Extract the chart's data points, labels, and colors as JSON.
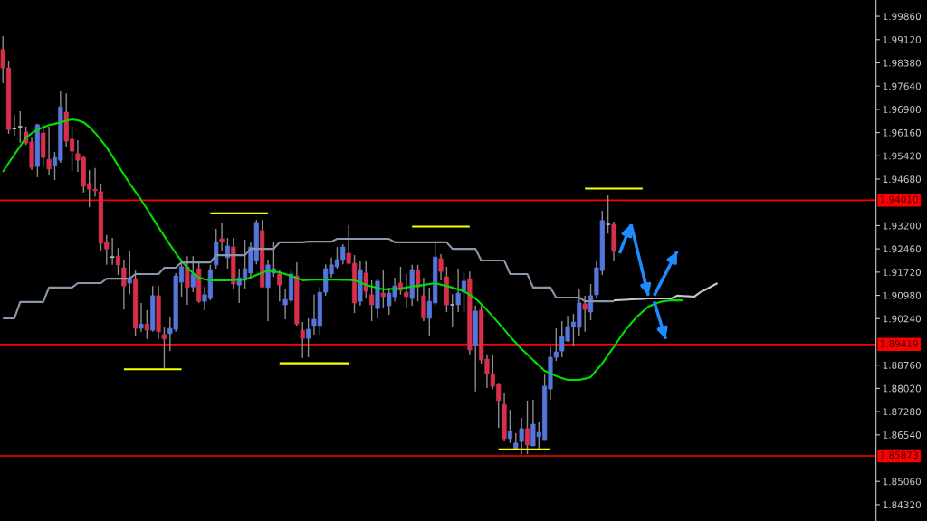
{
  "chart_data": {
    "type": "candlestick",
    "categories": [
      null,
      null,
      null,
      null,
      null,
      null,
      null,
      null,
      null,
      null,
      null,
      null,
      null,
      null,
      null,
      null,
      null,
      null,
      null,
      null,
      null,
      null,
      null,
      null,
      null,
      null,
      null,
      null,
      null,
      null,
      null,
      null,
      null,
      null,
      null,
      null,
      null,
      null,
      null,
      null,
      null,
      null,
      null,
      null,
      null,
      null,
      null,
      null,
      null,
      null,
      null,
      null,
      null,
      null,
      null,
      null,
      null,
      null,
      null,
      null,
      null,
      null,
      null,
      null,
      null,
      null,
      null,
      null,
      null,
      null,
      null,
      null,
      null,
      null,
      null,
      null,
      null,
      null,
      null,
      null,
      null,
      null,
      null,
      null,
      null,
      null,
      null,
      null,
      null,
      null,
      null,
      null,
      null,
      null,
      null,
      null,
      null,
      null,
      null,
      null,
      null,
      null,
      null,
      null,
      null,
      null,
      null,
      null,
      null,
      null,
      null,
      null,
      null,
      null,
      null,
      null,
      null,
      null,
      null,
      null,
      null,
      null,
      null,
      null,
      null,
      null,
      null,
      null,
      null,
      null,
      null,
      null,
      null,
      null,
      null,
      null,
      null,
      null,
      null,
      null,
      null,
      null,
      null,
      null,
      null,
      null,
      null,
      null,
      null,
      null,
      null,
      null
    ],
    "ohlc": [
      [
        1.988,
        1.9923,
        1.9773,
        1.9822
      ],
      [
        1.9822,
        1.9845,
        1.9612,
        1.9626
      ],
      [
        1.9629,
        1.9672,
        1.9606,
        1.9629
      ],
      [
        1.9635,
        1.9684,
        1.9583,
        1.9635
      ],
      [
        1.9618,
        1.9635,
        1.9577,
        1.9583
      ],
      [
        1.9586,
        1.96,
        1.9497,
        1.9505
      ],
      [
        1.9508,
        1.9644,
        1.9474,
        1.9641
      ],
      [
        1.9615,
        1.9644,
        1.9511,
        1.9537
      ],
      [
        1.9531,
        1.9635,
        1.9482,
        1.95
      ],
      [
        1.9511,
        1.9554,
        1.9465,
        1.9537
      ],
      [
        1.9528,
        1.9747,
        1.952,
        1.9698
      ],
      [
        1.9681,
        1.9741,
        1.9569,
        1.9589
      ],
      [
        1.9595,
        1.9635,
        1.9494,
        1.9557
      ],
      [
        1.9549,
        1.9592,
        1.9491,
        1.9528
      ],
      [
        1.9537,
        1.954,
        1.9425,
        1.9445
      ],
      [
        1.9454,
        1.9497,
        1.9379,
        1.9436
      ],
      [
        1.9436,
        1.9503,
        1.9413,
        1.9431
      ],
      [
        1.9428,
        1.9454,
        1.9241,
        1.9264
      ],
      [
        1.9269,
        1.929,
        1.9195,
        1.9246
      ],
      [
        1.922,
        1.9281,
        1.9195,
        1.922
      ],
      [
        1.9223,
        1.9249,
        1.9163,
        1.9195
      ],
      [
        1.9186,
        1.9212,
        1.9053,
        1.9128
      ],
      [
        1.9137,
        1.9238,
        1.9102,
        1.9148
      ],
      [
        1.9151,
        1.918,
        1.897,
        1.8993
      ],
      [
        1.8993,
        1.9074,
        1.8982,
        1.9007
      ],
      [
        1.9007,
        1.9051,
        1.8959,
        1.8987
      ],
      [
        1.8987,
        1.9128,
        1.8982,
        1.9097
      ],
      [
        1.9097,
        1.9128,
        1.8959,
        1.8982
      ],
      [
        1.8973,
        1.8996,
        1.8866,
        1.8959
      ],
      [
        1.8976,
        1.903,
        1.8921,
        1.8993
      ],
      [
        1.899,
        1.9169,
        1.8982,
        1.916
      ],
      [
        1.914,
        1.9212,
        1.9094,
        1.9189
      ],
      [
        1.9189,
        1.9223,
        1.9068,
        1.9123
      ],
      [
        1.9125,
        1.9223,
        1.9108,
        1.9166
      ],
      [
        1.9183,
        1.9203,
        1.9074,
        1.9079
      ],
      [
        1.9079,
        1.9125,
        1.9051,
        1.91
      ],
      [
        1.9088,
        1.9195,
        1.9082,
        1.918
      ],
      [
        1.9195,
        1.931,
        1.9183,
        1.9269
      ],
      [
        1.9278,
        1.9327,
        1.9238,
        1.9269
      ],
      [
        1.9218,
        1.9281,
        1.9183,
        1.9255
      ],
      [
        1.9252,
        1.9281,
        1.9117,
        1.9134
      ],
      [
        1.9131,
        1.9183,
        1.9074,
        1.9154
      ],
      [
        1.9148,
        1.9275,
        1.9117,
        1.9183
      ],
      [
        1.9169,
        1.9269,
        1.9154,
        1.9252
      ],
      [
        1.9209,
        1.9338,
        1.9197,
        1.933
      ],
      [
        1.9304,
        1.9338,
        1.9123,
        1.9125
      ],
      [
        1.9123,
        1.9212,
        1.9016,
        1.9195
      ],
      [
        1.9169,
        1.9267,
        1.9157,
        1.9183
      ],
      [
        1.9166,
        1.918,
        1.9079,
        1.9131
      ],
      [
        1.9068,
        1.9117,
        1.9022,
        1.9085
      ],
      [
        1.9082,
        1.9177,
        1.9074,
        1.9166
      ],
      [
        1.916,
        1.9203,
        1.9002,
        1.9007
      ],
      [
        1.8987,
        1.9013,
        1.8898,
        1.8961
      ],
      [
        1.8961,
        1.9025,
        1.8901,
        1.899
      ],
      [
        1.9002,
        1.91,
        1.8973,
        1.9022
      ],
      [
        1.9002,
        1.9125,
        1.8973,
        1.9108
      ],
      [
        1.9108,
        1.9197,
        1.9097,
        1.9183
      ],
      [
        1.9166,
        1.9218,
        1.9154,
        1.9195
      ],
      [
        1.9189,
        1.9252,
        1.9183,
        1.9212
      ],
      [
        1.9212,
        1.9261,
        1.9197,
        1.9252
      ],
      [
        1.9232,
        1.9321,
        1.9197,
        1.92
      ],
      [
        1.92,
        1.9226,
        1.9042,
        1.9074
      ],
      [
        1.9079,
        1.9209,
        1.9065,
        1.918
      ],
      [
        1.9169,
        1.9209,
        1.9088,
        1.9111
      ],
      [
        1.91,
        1.9146,
        1.9016,
        1.9068
      ],
      [
        1.9056,
        1.9151,
        1.9025,
        1.9143
      ],
      [
        1.9105,
        1.918,
        1.9059,
        1.9094
      ],
      [
        1.9065,
        1.9123,
        1.9036,
        1.9105
      ],
      [
        1.9094,
        1.9154,
        1.9079,
        1.9128
      ],
      [
        1.9137,
        1.9189,
        1.91,
        1.9114
      ],
      [
        1.9108,
        1.9166,
        1.9059,
        1.9094
      ],
      [
        1.9088,
        1.9195,
        1.9065,
        1.918
      ],
      [
        1.9177,
        1.9195,
        1.9079,
        1.9125
      ],
      [
        1.9097,
        1.9154,
        1.9016,
        1.9025
      ],
      [
        1.9025,
        1.9123,
        1.8967,
        1.9079
      ],
      [
        1.9074,
        1.9267,
        1.9065,
        1.922
      ],
      [
        1.9215,
        1.9229,
        1.9146,
        1.9174
      ],
      [
        1.9157,
        1.9189,
        1.9045,
        1.9068
      ],
      [
        1.9068,
        1.9102,
        1.8996,
        1.9068
      ],
      [
        1.9068,
        1.9183,
        1.9045,
        1.9105
      ],
      [
        1.9108,
        1.9169,
        1.9045,
        1.9143
      ],
      [
        1.9151,
        1.9174,
        1.891,
        1.8924
      ],
      [
        1.8938,
        1.9065,
        1.8792,
        1.9048
      ],
      [
        1.9051,
        1.9065,
        1.8881,
        1.8892
      ],
      [
        1.8895,
        1.891,
        1.8803,
        1.8849
      ],
      [
        1.8849,
        1.8907,
        1.88,
        1.8809
      ],
      [
        1.8814,
        1.882,
        1.8676,
        1.8763
      ],
      [
        1.8751,
        1.8786,
        1.8633,
        1.8642
      ],
      [
        1.8642,
        1.8734,
        1.8628,
        1.8665
      ],
      [
        1.861,
        1.8659,
        1.8605,
        1.8628
      ],
      [
        1.8633,
        1.8708,
        1.8593,
        1.8674
      ],
      [
        1.8674,
        1.8763,
        1.8593,
        1.8622
      ],
      [
        1.8619,
        1.8766,
        1.8619,
        1.8688
      ],
      [
        1.8648,
        1.8694,
        1.8605,
        1.8662
      ],
      [
        1.8636,
        1.8849,
        1.8636,
        1.8809
      ],
      [
        1.88,
        1.8935,
        1.8766,
        1.8901
      ],
      [
        1.8901,
        1.8993,
        1.8889,
        1.8918
      ],
      [
        1.8921,
        1.9016,
        1.8901,
        1.8967
      ],
      [
        1.8953,
        1.9033,
        1.895,
        1.8999
      ],
      [
        1.8999,
        1.9039,
        1.8935,
        1.9013
      ],
      [
        1.8996,
        1.9117,
        1.897,
        1.9074
      ],
      [
        1.9071,
        1.9097,
        1.8982,
        1.9053
      ],
      [
        1.9045,
        1.9134,
        1.9019,
        1.9097
      ],
      [
        1.91,
        1.9206,
        1.9088,
        1.9186
      ],
      [
        1.9177,
        1.9367,
        1.9163,
        1.9336
      ],
      [
        1.9324,
        1.9416,
        1.9295,
        1.9324
      ],
      [
        1.9324,
        1.9333,
        1.9206,
        1.9238
      ],
      null,
      null,
      null,
      null,
      null,
      null,
      null,
      null,
      null,
      null,
      null,
      null,
      null,
      null,
      null,
      null,
      null,
      null,
      null,
      null,
      null,
      null,
      null,
      null,
      null,
      null,
      null,
      null,
      null,
      null,
      null,
      null,
      null,
      null,
      null,
      null,
      null,
      null,
      null,
      null,
      null,
      null,
      null,
      null,
      null
    ],
    "colors": [
      "#d8304c",
      "#d8304c",
      "#b4b4b4",
      "#b4b4b4",
      "#d8304c",
      "#d8304c",
      "#5577dd",
      "#d8304c",
      "#d8304c",
      "#5577dd",
      "#5577dd",
      "#d8304c",
      "#d8304c",
      "#d8304c",
      "#d8304c",
      "#d8304c",
      "#d8304c",
      "#d8304c",
      "#d8304c",
      "#b4b4b4",
      "#d8304c",
      "#d8304c",
      "#5577dd",
      "#d8304c",
      "#5577dd",
      "#d8304c",
      "#5577dd",
      "#d8304c",
      "#d8304c",
      "#5577dd",
      "#5577dd",
      "#5577dd",
      "#d8304c",
      "#5577dd",
      "#d8304c",
      "#5577dd",
      "#5577dd",
      "#5577dd",
      "#d8304c",
      "#5577dd",
      "#d8304c",
      "#5577dd",
      "#5577dd",
      "#5577dd",
      "#5577dd",
      "#d8304c",
      "#5577dd",
      "#5577dd",
      "#d8304c",
      "#5577dd",
      "#5577dd",
      "#d8304c",
      "#d8304c",
      "#5577dd",
      "#5577dd",
      "#5577dd",
      "#5577dd",
      "#5577dd",
      "#5577dd",
      "#5577dd",
      "#d8304c",
      "#d8304c",
      "#5577dd",
      "#d8304c",
      "#d8304c",
      "#5577dd",
      "#d8304c",
      "#5577dd",
      "#5577dd",
      "#d8304c",
      "#d8304c",
      "#5577dd",
      "#d8304c",
      "#d8304c",
      "#5577dd",
      "#5577dd",
      "#d8304c",
      "#d8304c",
      "#b4b4b4",
      "#5577dd",
      "#5577dd",
      "#d8304c",
      "#5577dd",
      "#d8304c",
      "#d8304c",
      "#d8304c",
      "#d8304c",
      "#d8304c",
      "#5577dd",
      "#5577dd",
      "#5577dd",
      "#d8304c",
      "#5577dd",
      "#5577dd",
      "#5577dd",
      "#5577dd",
      "#5577dd",
      "#5577dd",
      "#5577dd",
      "#5577dd",
      "#5577dd",
      "#d8304c",
      "#5577dd",
      "#5577dd",
      "#5577dd",
      "#b4b4b4",
      "#d8304c",
      null,
      null,
      null,
      null,
      null,
      null,
      null,
      null,
      null,
      null,
      null,
      null,
      null,
      null,
      null,
      null,
      null,
      null,
      null,
      null,
      null,
      null,
      null,
      null,
      null,
      null,
      null,
      null,
      null,
      null,
      null,
      null,
      null,
      null,
      null,
      null,
      null,
      null,
      null,
      null,
      null,
      null,
      null,
      null,
      null
    ],
    "series": [
      {
        "type": "line",
        "color": "#00e000",
        "values": [
          1.9491,
          1.9519,
          1.9546,
          1.9573,
          1.96,
          1.9614,
          1.9626,
          1.9633,
          1.964,
          1.9644,
          1.9649,
          1.9654,
          1.9658,
          1.9655,
          1.9649,
          1.9634,
          1.9615,
          1.9593,
          1.9569,
          1.9541,
          1.9511,
          1.9483,
          1.9454,
          1.9428,
          1.9402,
          1.9373,
          1.9344,
          1.9315,
          1.9287,
          1.9259,
          1.9232,
          1.9208,
          1.9186,
          1.9169,
          1.9154,
          1.9149,
          1.9146,
          1.9146,
          1.9146,
          1.9146,
          1.9147,
          1.9147,
          1.9148,
          1.9155,
          1.9163,
          1.917,
          1.9177,
          1.9174,
          1.9171,
          1.9166,
          1.916,
          1.9153,
          1.9146,
          1.9147,
          1.9148,
          1.9148,
          1.9148,
          1.9148,
          1.9148,
          1.9147,
          1.9147,
          1.9146,
          1.9139,
          1.9131,
          1.9126,
          1.9122,
          1.9117,
          1.9118,
          1.9119,
          1.912,
          1.9123,
          1.9126,
          1.9128,
          1.9131,
          1.9134,
          1.9137,
          1.9132,
          1.9128,
          1.9123,
          1.9117,
          1.9111,
          1.91,
          1.9088,
          1.907,
          1.9051,
          1.9031,
          1.901,
          1.8989,
          1.8967,
          1.8947,
          1.8927,
          1.891,
          1.8892,
          1.8875,
          1.8858,
          1.885,
          1.8841,
          1.8835,
          1.8829,
          1.8829,
          1.8829,
          1.8833,
          1.8838,
          1.886,
          1.8881,
          1.8908,
          1.8934,
          1.8961,
          1.8987,
          1.9009,
          1.903,
          1.9046,
          1.9062,
          1.907,
          1.9077,
          1.908,
          1.9082,
          1.9082,
          1.9082,
          null,
          null,
          null,
          null,
          null,
          null,
          null,
          null,
          null,
          null,
          null,
          null,
          null,
          null,
          null,
          null,
          null,
          null,
          null,
          null,
          null,
          null,
          null,
          null,
          null,
          null,
          null,
          null,
          null,
          null,
          null,
          null,
          null
        ]
      },
      {
        "type": "line",
        "color": "#8a97a8",
        "values": [
          1.9025,
          1.9025,
          1.9025,
          1.9077,
          1.9077,
          1.9077,
          1.9077,
          1.9077,
          1.9123,
          1.9123,
          1.9123,
          1.9123,
          1.9123,
          1.9137,
          1.9137,
          1.9137,
          1.9137,
          1.9137,
          1.9151,
          1.9151,
          1.9151,
          1.9151,
          1.9151,
          1.9166,
          1.9166,
          1.9166,
          1.9166,
          1.9166,
          1.9186,
          1.9186,
          1.9186,
          1.9203,
          1.9203,
          1.9203,
          1.9203,
          1.9203,
          1.9203,
          1.9226,
          1.9226,
          1.9226,
          1.9226,
          1.9226,
          1.9226,
          1.9246,
          1.9246,
          1.9246,
          1.9246,
          1.9246,
          1.9267,
          1.9267,
          1.9267,
          1.9267,
          1.9267,
          1.9269,
          1.9269,
          1.9269,
          1.9269,
          1.9269,
          1.9278,
          1.9278,
          1.9278,
          1.9278,
          1.9278,
          1.9278,
          1.9278,
          1.9278,
          1.9278,
          1.9278,
          1.9267,
          1.9267,
          1.9267,
          1.9267,
          1.9267,
          1.9267,
          1.9267,
          1.9267,
          1.9267,
          1.9267,
          1.9246,
          1.9246,
          1.9246,
          1.9246,
          1.9246,
          1.9209,
          1.9209,
          1.9209,
          1.9209,
          1.9209,
          1.9166,
          1.9166,
          1.9166,
          1.9166,
          1.9123,
          1.9123,
          1.9123,
          1.9123,
          1.9091,
          1.9091,
          1.9091,
          1.9091,
          1.9091,
          1.9079,
          1.9079,
          1.9079,
          1.9079,
          1.9079,
          1.9079,
          null,
          null,
          null,
          null,
          null,
          null,
          null,
          null,
          null,
          null,
          null,
          null,
          null,
          null,
          null,
          null,
          null,
          null,
          null,
          null,
          null,
          null,
          null,
          null,
          null,
          null,
          null,
          null,
          null,
          null,
          null,
          null,
          null,
          null,
          null,
          null,
          null,
          null,
          null,
          null,
          null,
          null,
          null,
          null,
          null
        ]
      },
      {
        "type": "line",
        "color": "#c8c8c8",
        "values": [
          null,
          null,
          null,
          null,
          null,
          null,
          null,
          null,
          null,
          null,
          null,
          null,
          null,
          null,
          null,
          null,
          null,
          null,
          null,
          null,
          null,
          null,
          null,
          null,
          null,
          null,
          null,
          null,
          null,
          null,
          null,
          null,
          null,
          null,
          null,
          null,
          null,
          null,
          null,
          null,
          null,
          null,
          null,
          null,
          null,
          null,
          null,
          null,
          null,
          null,
          null,
          null,
          null,
          null,
          null,
          null,
          null,
          null,
          null,
          null,
          null,
          null,
          null,
          null,
          null,
          null,
          null,
          null,
          null,
          null,
          null,
          null,
          null,
          null,
          null,
          null,
          null,
          null,
          null,
          null,
          null,
          null,
          null,
          null,
          null,
          null,
          null,
          null,
          null,
          null,
          null,
          null,
          null,
          null,
          null,
          null,
          null,
          null,
          null,
          null,
          null,
          null,
          null,
          null,
          null,
          null,
          1.9082,
          1.9083,
          1.9084,
          1.9085,
          1.9086,
          1.9087,
          1.9088,
          1.9088,
          1.9088,
          1.9088,
          1.9088,
          1.9097,
          1.9096,
          1.9095,
          1.9094,
          1.9108,
          1.9117,
          1.9127,
          1.9137,
          null,
          null,
          null,
          null,
          null,
          null,
          null,
          null,
          null,
          null,
          null,
          null,
          null,
          null,
          null,
          null,
          null,
          null,
          null,
          null,
          null,
          null,
          null,
          null,
          null,
          null,
          null
        ]
      },
      {
        "type": "line",
        "color": "#ffff00",
        "values": [
          null,
          null,
          null,
          null,
          null,
          null,
          null,
          null,
          null,
          null,
          null,
          null,
          null,
          null,
          null,
          null,
          null,
          null,
          null,
          null,
          null,
          1.8863,
          1.8863,
          1.8863,
          1.8863,
          1.8863,
          1.8863,
          1.8863,
          1.8863,
          1.8863,
          1.8863,
          1.8863,
          null,
          null,
          null,
          null,
          1.9359,
          1.9359,
          1.9359,
          1.9359,
          1.9359,
          1.9359,
          1.9359,
          1.9359,
          1.9359,
          1.9359,
          1.9359,
          null,
          1.8882,
          1.8882,
          1.8882,
          1.8882,
          1.8882,
          1.8882,
          1.8882,
          1.8882,
          1.8882,
          1.8882,
          1.8882,
          1.8882,
          1.8882,
          null,
          null,
          null,
          null,
          null,
          null,
          null,
          null,
          null,
          null,
          1.9317,
          1.9317,
          1.9317,
          1.9317,
          1.9317,
          1.9317,
          1.9317,
          1.9317,
          1.9317,
          1.9317,
          1.9317,
          null,
          null,
          null,
          null,
          1.8608,
          1.8608,
          1.8608,
          1.8608,
          1.8608,
          1.8608,
          1.8608,
          1.8608,
          1.8608,
          1.8608,
          null,
          null,
          null,
          null,
          null,
          1.9438,
          1.9438,
          1.9438,
          1.9438,
          1.9438,
          1.9438,
          1.9438,
          1.9438,
          1.9438,
          1.9438,
          1.9438,
          null,
          null,
          null,
          null,
          null,
          null,
          null,
          null,
          null,
          null,
          null,
          null,
          null,
          null,
          null,
          null,
          null,
          null,
          null,
          null,
          null,
          null,
          null,
          null,
          null,
          null,
          null,
          null,
          null,
          null,
          null,
          null,
          null,
          null,
          null,
          null,
          null,
          null,
          null,
          null
        ]
      },
      {
        "type": "line",
        "color": "#1e8cff",
        "values": [
          null,
          null,
          null,
          null,
          null,
          null,
          null,
          null,
          null,
          null,
          null,
          null,
          null,
          null,
          null,
          null,
          null,
          null,
          null,
          null,
          null,
          null,
          null,
          null,
          null,
          null,
          null,
          null,
          null,
          null,
          null,
          null,
          null,
          null,
          null,
          null,
          null,
          null,
          null,
          null,
          null,
          null,
          null,
          null,
          null,
          null,
          null,
          null,
          null,
          null,
          null,
          null,
          null,
          null,
          null,
          null,
          null,
          null,
          null,
          null,
          null,
          null,
          null,
          null,
          null,
          null,
          null,
          null,
          null,
          null,
          null,
          null,
          null,
          null,
          null,
          null,
          null,
          null,
          null,
          null,
          null,
          null,
          null,
          null,
          null,
          null,
          null,
          null,
          null,
          null,
          null,
          null,
          null,
          null,
          null,
          null,
          null,
          null,
          null,
          null,
          null,
          null,
          null,
          null,
          null,
          null,
          null,
          1.9232,
          null,
          1.9324,
          null,
          null,
          null,
          null,
          null,
          null,
          null,
          null,
          null,
          null,
          null,
          null,
          null,
          null,
          null,
          null,
          null,
          null,
          null,
          null,
          null,
          null,
          null,
          null,
          null,
          null,
          null,
          null,
          null,
          null,
          null,
          null,
          null,
          null,
          null,
          null,
          null,
          null,
          null,
          null,
          null,
          null
        ]
      },
      {
        "type": "line",
        "color": "#1e8cff",
        "values": [
          null,
          null,
          null,
          null,
          null,
          null,
          null,
          null,
          null,
          null,
          null,
          null,
          null,
          null,
          null,
          null,
          null,
          null,
          null,
          null,
          null,
          null,
          null,
          null,
          null,
          null,
          null,
          null,
          null,
          null,
          null,
          null,
          null,
          null,
          null,
          null,
          null,
          null,
          null,
          null,
          null,
          null,
          null,
          null,
          null,
          null,
          null,
          null,
          null,
          null,
          null,
          null,
          null,
          null,
          null,
          null,
          null,
          null,
          null,
          null,
          null,
          null,
          null,
          null,
          null,
          null,
          null,
          null,
          null,
          null,
          null,
          null,
          null,
          null,
          null,
          null,
          null,
          null,
          null,
          null,
          null,
          null,
          null,
          null,
          null,
          null,
          null,
          null,
          null,
          null,
          null,
          null,
          null,
          null,
          null,
          null,
          null,
          null,
          null,
          null,
          null,
          null,
          null,
          null,
          null,
          null,
          null,
          null,
          null,
          1.9324,
          null,
          null,
          1.9097,
          null,
          null,
          null,
          null,
          null,
          null,
          null,
          null,
          null,
          null,
          null,
          null,
          null,
          null,
          null,
          null,
          null,
          null,
          null,
          null,
          null,
          null,
          null,
          null,
          null,
          null,
          null,
          null,
          null,
          null,
          null,
          null,
          null,
          null,
          null,
          null,
          null,
          null,
          null
        ]
      },
      {
        "type": "line",
        "color": "#1e8cff",
        "values": [
          null,
          null,
          null,
          null,
          null,
          null,
          null,
          null,
          null,
          null,
          null,
          null,
          null,
          null,
          null,
          null,
          null,
          null,
          null,
          null,
          null,
          null,
          null,
          null,
          null,
          null,
          null,
          null,
          null,
          null,
          null,
          null,
          null,
          null,
          null,
          null,
          null,
          null,
          null,
          null,
          null,
          null,
          null,
          null,
          null,
          null,
          null,
          null,
          null,
          null,
          null,
          null,
          null,
          null,
          null,
          null,
          null,
          null,
          null,
          null,
          null,
          null,
          null,
          null,
          null,
          null,
          null,
          null,
          null,
          null,
          null,
          null,
          null,
          null,
          null,
          null,
          null,
          null,
          null,
          null,
          null,
          null,
          null,
          null,
          null,
          null,
          null,
          null,
          null,
          null,
          null,
          null,
          null,
          null,
          null,
          null,
          null,
          null,
          null,
          null,
          null,
          null,
          null,
          null,
          null,
          null,
          null,
          null,
          null,
          null,
          null,
          null,
          null,
          1.9097,
          null,
          null,
          null,
          1.9238,
          null,
          null,
          null,
          null,
          null,
          null,
          null,
          null,
          null,
          null,
          null,
          null,
          null,
          null,
          null,
          null,
          null,
          null,
          null,
          null,
          null,
          null,
          null,
          null,
          null,
          null,
          null,
          null,
          null,
          null,
          null,
          null,
          null,
          null
        ]
      },
      {
        "type": "line",
        "color": "#1e8cff",
        "values": [
          null,
          null,
          null,
          null,
          null,
          null,
          null,
          null,
          null,
          null,
          null,
          null,
          null,
          null,
          null,
          null,
          null,
          null,
          null,
          null,
          null,
          null,
          null,
          null,
          null,
          null,
          null,
          null,
          null,
          null,
          null,
          null,
          null,
          null,
          null,
          null,
          null,
          null,
          null,
          null,
          null,
          null,
          null,
          null,
          null,
          null,
          null,
          null,
          null,
          null,
          null,
          null,
          null,
          null,
          null,
          null,
          null,
          null,
          null,
          null,
          null,
          null,
          null,
          null,
          null,
          null,
          null,
          null,
          null,
          null,
          null,
          null,
          null,
          null,
          null,
          null,
          null,
          null,
          null,
          null,
          null,
          null,
          null,
          null,
          null,
          null,
          null,
          null,
          null,
          null,
          null,
          null,
          null,
          null,
          null,
          null,
          null,
          null,
          null,
          null,
          null,
          null,
          null,
          null,
          null,
          null,
          null,
          null,
          null,
          null,
          null,
          null,
          null,
          1.9079,
          null,
          1.8959,
          null,
          null,
          null,
          null,
          null,
          null,
          null,
          null,
          null,
          null,
          null,
          null,
          null,
          null,
          null,
          null,
          null,
          null,
          null,
          null,
          null,
          null,
          null,
          null,
          null,
          null,
          null,
          null,
          null,
          null,
          null,
          null,
          null,
          null,
          null,
          null
        ]
      }
    ],
    "ref_lines": [
      {
        "axis": "y",
        "value": 1.9401,
        "label": "1.94010",
        "color": "#ff0000"
      },
      {
        "axis": "y",
        "value": 1.89419,
        "label": "1.89419",
        "color": "#ff0000"
      },
      {
        "axis": "y",
        "value": 1.85873,
        "label": "1.85873",
        "color": "#ff0000"
      }
    ],
    "ylim": [
      1.838,
      2.0038
    ],
    "yticks": [
      {
        "value": 1.9986,
        "label": "1.99860"
      },
      {
        "value": 1.9912,
        "label": "1.99120"
      },
      {
        "value": 1.9838,
        "label": "1.98380"
      },
      {
        "value": 1.9764,
        "label": "1.97640"
      },
      {
        "value": 1.969,
        "label": "1.96900"
      },
      {
        "value": 1.9616,
        "label": "1.96160"
      },
      {
        "value": 1.9542,
        "label": "1.95420"
      },
      {
        "value": 1.9468,
        "label": "1.94680"
      },
      {
        "value": 1.932,
        "label": "1.93200"
      },
      {
        "value": 1.9246,
        "label": "1.92460"
      },
      {
        "value": 1.9172,
        "label": "1.91720"
      },
      {
        "value": 1.9098,
        "label": "1.90980"
      },
      {
        "value": 1.9024,
        "label": "1.90240"
      },
      {
        "value": 1.8876,
        "label": "1.88760"
      },
      {
        "value": 1.8802,
        "label": "1.88020"
      },
      {
        "value": 1.8728,
        "label": "1.87280"
      },
      {
        "value": 1.8654,
        "label": "1.86540"
      },
      {
        "value": 1.8506,
        "label": "1.85060"
      },
      {
        "value": 1.8432,
        "label": "1.84320"
      }
    ],
    "tick_labels": "y"
  }
}
